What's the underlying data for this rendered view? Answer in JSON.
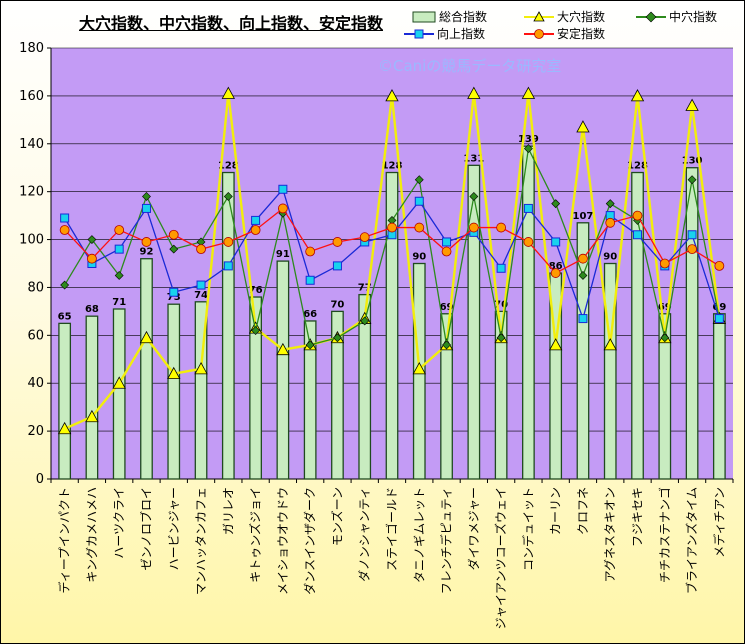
{
  "title": "大穴指数、中穴指数、向上指数、安定指数",
  "watermark": "©Caniの競馬データ研究室",
  "colors": {
    "plot_bg": "#c39bf5",
    "bar_fill": "#c8ecc0",
    "bar_edge": "#1f4a1f",
    "oana": "#f2ee0c",
    "chuana": "#2d8a1d",
    "kojo": "#1a2ad6",
    "kojo_marker": "#18d2ee",
    "antei": "#ff1111",
    "antei_marker": "#ff9a00"
  },
  "legend": [
    {
      "key": "sogo",
      "label": "総合指数",
      "icon": "bar-swatch"
    },
    {
      "key": "oana",
      "label": "大穴指数",
      "icon": "triangle-marker"
    },
    {
      "key": "chuana",
      "label": "中穴指数",
      "icon": "diamond-marker"
    },
    {
      "key": "kojo",
      "label": "向上指数",
      "icon": "square-marker"
    },
    {
      "key": "antei",
      "label": "安定指数",
      "icon": "circle-marker"
    }
  ],
  "chart_data": {
    "type": "bar",
    "title": "大穴指数、中穴指数、向上指数、安定指数",
    "ylim": [
      0,
      180
    ],
    "yticks": [
      0,
      20,
      40,
      60,
      80,
      100,
      120,
      140,
      160,
      180
    ],
    "grid": true,
    "legend_position": "top-right",
    "categories": [
      "ディープインパクト",
      "キングカメハメハ",
      "ハーツクライ",
      "ゼンノロブロイ",
      "ハービンジャー",
      "マンハッタンカフェ",
      "ガリレオ",
      "キトゥンズジョイ",
      "メイショウオウドウ",
      "ダンスインザダーク",
      "モンズーン",
      "ダノンシャンティ",
      "ステイゴールド",
      "タニノギムレット",
      "フレンチデピュティ",
      "ダイワメジャー",
      "ジャイアンツコーズウェイ",
      "コンデュイット",
      "カーリン",
      "クロフネ",
      "アグネスタキオン",
      "フジキセキ",
      "チチカステナンゴ",
      "ブライアンズタイム",
      "メディチアン"
    ],
    "series": [
      {
        "name": "総合指数",
        "kind": "bar",
        "labels_shown": true,
        "values": [
          65,
          68,
          71,
          92,
          73,
          74,
          128,
          76,
          91,
          66,
          70,
          77,
          128,
          90,
          69,
          131,
          70,
          139,
          86,
          107,
          90,
          128,
          69,
          130,
          69
        ]
      },
      {
        "name": "大穴指数",
        "kind": "line",
        "marker": "triangle",
        "values": [
          21,
          26,
          40,
          59,
          44,
          46,
          161,
          63,
          54,
          56,
          59,
          67,
          160,
          46,
          56,
          161,
          59,
          161,
          56,
          147,
          56,
          160,
          59,
          156,
          67
        ]
      },
      {
        "name": "中穴指数",
        "kind": "line",
        "marker": "diamond",
        "values": [
          81,
          100,
          85,
          118,
          96,
          99,
          118,
          62,
          111,
          56,
          59,
          66,
          108,
          125,
          56,
          118,
          59,
          138,
          115,
          85,
          115,
          108,
          59,
          125,
          67
        ]
      },
      {
        "name": "向上指数",
        "kind": "line",
        "marker": "square",
        "values": [
          109,
          90,
          96,
          113,
          78,
          81,
          89,
          108,
          121,
          83,
          89,
          99,
          102,
          116,
          99,
          103,
          88,
          113,
          99,
          67,
          110,
          102,
          89,
          102,
          67
        ]
      },
      {
        "name": "安定指数",
        "kind": "line",
        "marker": "circle",
        "values": [
          104,
          92,
          104,
          99,
          102,
          96,
          99,
          104,
          113,
          95,
          99,
          101,
          105,
          105,
          95,
          105,
          105,
          99,
          86,
          92,
          107,
          110,
          90,
          96,
          89
        ]
      }
    ]
  }
}
